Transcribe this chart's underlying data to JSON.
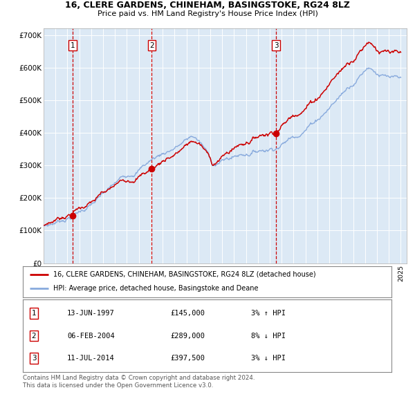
{
  "title1": "16, CLERE GARDENS, CHINEHAM, BASINGSTOKE, RG24 8LZ",
  "title2": "Price paid vs. HM Land Registry's House Price Index (HPI)",
  "bg_color": "#dce9f5",
  "red_line_color": "#cc0000",
  "blue_line_color": "#88aadd",
  "sale_dates": [
    1997.44,
    2004.09,
    2014.53
  ],
  "sale_prices": [
    145000,
    289000,
    397500
  ],
  "sale_labels": [
    "1",
    "2",
    "3"
  ],
  "legend_red": "16, CLERE GARDENS, CHINEHAM, BASINGSTOKE, RG24 8LZ (detached house)",
  "legend_blue": "HPI: Average price, detached house, Basingstoke and Deane",
  "footer_line1": "Contains HM Land Registry data © Crown copyright and database right 2024.",
  "footer_line2": "This data is licensed under the Open Government Licence v3.0.",
  "table": [
    {
      "num": "1",
      "date": "13-JUN-1997",
      "price": "£145,000",
      "hpi": "3% ↑ HPI"
    },
    {
      "num": "2",
      "date": "06-FEB-2004",
      "price": "£289,000",
      "hpi": "8% ↓ HPI"
    },
    {
      "num": "3",
      "date": "11-JUL-2014",
      "price": "£397,500",
      "hpi": "3% ↓ HPI"
    }
  ],
  "ylim": [
    0,
    720000
  ],
  "xlim_start": 1995.0,
  "xlim_end": 2025.5,
  "yticks": [
    0,
    100000,
    200000,
    300000,
    400000,
    500000,
    600000,
    700000
  ],
  "ylabels": [
    "£0",
    "£100K",
    "£200K",
    "£300K",
    "£400K",
    "£500K",
    "£600K",
    "£700K"
  ]
}
